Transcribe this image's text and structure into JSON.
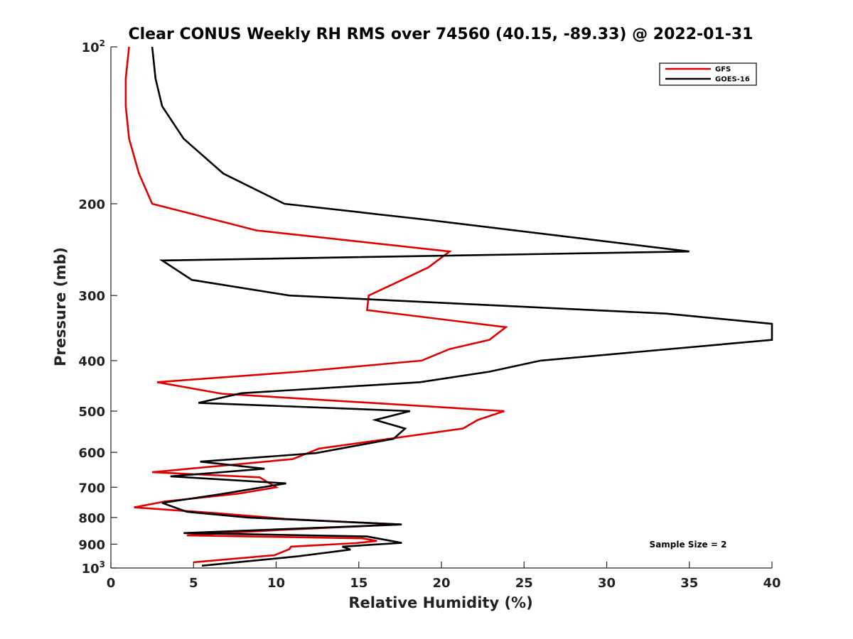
{
  "chart_data": {
    "type": "line",
    "title": "Clear CONUS Weekly RH RMS over 74560 (40.15, -89.33) @ 2022-01-31",
    "xlabel": "Relative Humidity (%)",
    "ylabel": "Pressure (mb)",
    "xlim": [
      0,
      40
    ],
    "ylim": [
      1000,
      100
    ],
    "y_scale": "log",
    "x_ticks": [
      0,
      5,
      10,
      15,
      20,
      25,
      30,
      35,
      40
    ],
    "y_ticks": [
      {
        "value": 100,
        "base": "10",
        "exp": "2"
      },
      {
        "value": 200,
        "label": "200"
      },
      {
        "value": 300,
        "label": "300"
      },
      {
        "value": 400,
        "label": "400"
      },
      {
        "value": 500,
        "label": "500"
      },
      {
        "value": 600,
        "label": "600"
      },
      {
        "value": 700,
        "label": "700"
      },
      {
        "value": 800,
        "label": "800"
      },
      {
        "value": 900,
        "label": "900"
      },
      {
        "value": 1000,
        "base": "10",
        "exp": "3"
      }
    ],
    "grid": false,
    "legend_position": "top-right",
    "annotation": "Sample Size = 2",
    "series": [
      {
        "name": "GFS",
        "color": "#e00000",
        "points": [
          [
            1.1,
            100
          ],
          [
            0.9,
            115
          ],
          [
            0.9,
            130
          ],
          [
            1.1,
            150
          ],
          [
            1.7,
            175
          ],
          [
            2.5,
            200
          ],
          [
            8.8,
            225
          ],
          [
            20.5,
            247
          ],
          [
            19.2,
            265
          ],
          [
            17.1,
            285
          ],
          [
            15.6,
            300
          ],
          [
            15.5,
            320
          ],
          [
            23.9,
            345
          ],
          [
            22.9,
            365
          ],
          [
            20.5,
            380
          ],
          [
            18.8,
            400
          ],
          [
            11.4,
            420
          ],
          [
            2.8,
            440
          ],
          [
            6.7,
            463
          ],
          [
            23.8,
            500
          ],
          [
            22.2,
            520
          ],
          [
            21.3,
            540
          ],
          [
            12.6,
            590
          ],
          [
            11.0,
            618
          ],
          [
            2.5,
            655
          ],
          [
            9.0,
            670
          ],
          [
            10.0,
            700
          ],
          [
            7.7,
            720
          ],
          [
            3.3,
            745
          ],
          [
            1.4,
            765
          ],
          [
            6.4,
            785
          ],
          [
            10.6,
            805
          ],
          [
            17.5,
            825
          ],
          [
            10.3,
            845
          ],
          [
            4.6,
            866
          ],
          [
            15.2,
            877
          ],
          [
            16.1,
            887
          ],
          [
            14.8,
            896
          ],
          [
            10.9,
            910
          ],
          [
            10.8,
            920
          ],
          [
            9.9,
            945
          ],
          [
            5.0,
            975
          ]
        ]
      },
      {
        "name": "GOES-16",
        "color": "#000000",
        "points": [
          [
            2.5,
            100
          ],
          [
            2.7,
            115
          ],
          [
            3.1,
            130
          ],
          [
            4.4,
            150
          ],
          [
            6.8,
            175
          ],
          [
            10.5,
            200
          ],
          [
            19.3,
            215
          ],
          [
            35.0,
            247
          ],
          [
            3.1,
            257
          ],
          [
            4.9,
            280
          ],
          [
            10.8,
            300
          ],
          [
            33.6,
            325
          ],
          [
            40.0,
            340
          ],
          [
            40.0,
            365
          ],
          [
            26.0,
            400
          ],
          [
            22.9,
            420
          ],
          [
            18.7,
            440
          ],
          [
            7.9,
            462
          ],
          [
            5.3,
            482
          ],
          [
            18.1,
            500
          ],
          [
            16.0,
            520
          ],
          [
            17.8,
            540
          ],
          [
            17.1,
            565
          ],
          [
            12.4,
            602
          ],
          [
            5.4,
            625
          ],
          [
            9.3,
            645
          ],
          [
            3.6,
            667
          ],
          [
            10.6,
            688
          ],
          [
            6.6,
            722
          ],
          [
            3.1,
            750
          ],
          [
            4.6,
            780
          ],
          [
            8.3,
            800
          ],
          [
            17.6,
            825
          ],
          [
            4.4,
            857
          ],
          [
            15.5,
            870
          ],
          [
            17.6,
            895
          ],
          [
            14.0,
            910
          ],
          [
            14.5,
            922
          ],
          [
            11.3,
            950
          ],
          [
            5.5,
            990
          ]
        ]
      }
    ]
  }
}
